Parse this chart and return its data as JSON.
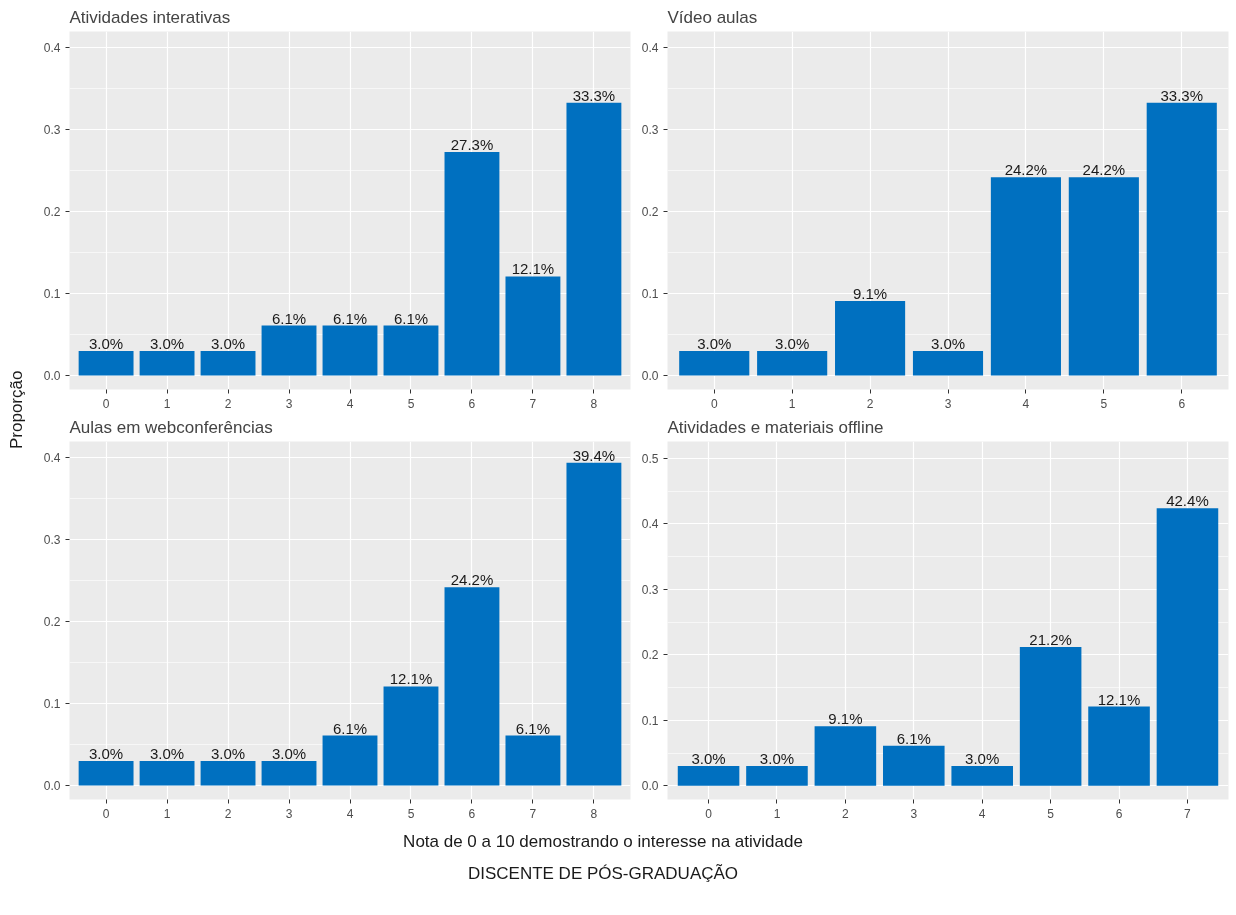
{
  "chart_data": [
    {
      "type": "bar",
      "title": "Atividades interativas",
      "ylabel": "Proporção",
      "categories": [
        "0",
        "1",
        "2",
        "3",
        "4",
        "5",
        "6",
        "7",
        "8"
      ],
      "color": "#0070c0",
      "values": [
        0.03,
        0.03,
        0.03,
        0.061,
        0.061,
        0.061,
        0.273,
        0.121,
        0.333
      ],
      "value_labels": [
        "3.0%",
        "3.0%",
        "3.0%",
        "6.1%",
        "6.1%",
        "6.1%",
        "27.3%",
        "12.1%",
        "33.3%"
      ],
      "ylim": [
        -0.017,
        0.42
      ],
      "yticks": [
        "0.0",
        "0.1",
        "0.2",
        "0.3",
        "0.4"
      ],
      "grid": true
    },
    {
      "type": "bar",
      "title": "Vídeo aulas",
      "categories": [
        "0",
        "1",
        "2",
        "3",
        "4",
        "5",
        "6"
      ],
      "color": "#0070c0",
      "values": [
        0.03,
        0.03,
        0.091,
        0.03,
        0.242,
        0.242,
        0.333
      ],
      "value_labels": [
        "3.0%",
        "3.0%",
        "9.1%",
        "3.0%",
        "24.2%",
        "24.2%",
        "33.3%"
      ],
      "ylim": [
        -0.017,
        0.42
      ],
      "yticks": [
        "0.0",
        "0.1",
        "0.2",
        "0.3",
        "0.4"
      ],
      "grid": true
    },
    {
      "type": "bar",
      "title": "Aulas em webconferências",
      "xlabel": "Nota de 0 a 10 demostrando o interesse na atividade",
      "annotations": [
        "DISCENTE DE PÓS-GRADUAÇÃO"
      ],
      "categories": [
        "0",
        "1",
        "2",
        "3",
        "4",
        "5",
        "6",
        "7",
        "8"
      ],
      "color": "#0070c0",
      "values": [
        0.03,
        0.03,
        0.03,
        0.03,
        0.061,
        0.121,
        0.242,
        0.061,
        0.394
      ],
      "value_labels": [
        "3.0%",
        "3.0%",
        "3.0%",
        "3.0%",
        "6.1%",
        "12.1%",
        "24.2%",
        "6.1%",
        "39.4%"
      ],
      "ylim": [
        -0.017,
        0.42
      ],
      "yticks": [
        "0.0",
        "0.1",
        "0.2",
        "0.3",
        "0.4"
      ],
      "grid": true
    },
    {
      "type": "bar",
      "title": "Atividades e materiais offline",
      "categories": [
        "0",
        "1",
        "2",
        "3",
        "4",
        "5",
        "6",
        "7"
      ],
      "color": "#0070c0",
      "values": [
        0.03,
        0.03,
        0.091,
        0.061,
        0.03,
        0.212,
        0.121,
        0.424
      ],
      "value_labels": [
        "3.0%",
        "3.0%",
        "9.1%",
        "6.1%",
        "3.0%",
        "21.2%",
        "12.1%",
        "42.4%"
      ],
      "ylim": [
        -0.021,
        0.526
      ],
      "yticks": [
        "0.0",
        "0.1",
        "0.2",
        "0.3",
        "0.4",
        "0.5"
      ],
      "grid": true
    }
  ]
}
